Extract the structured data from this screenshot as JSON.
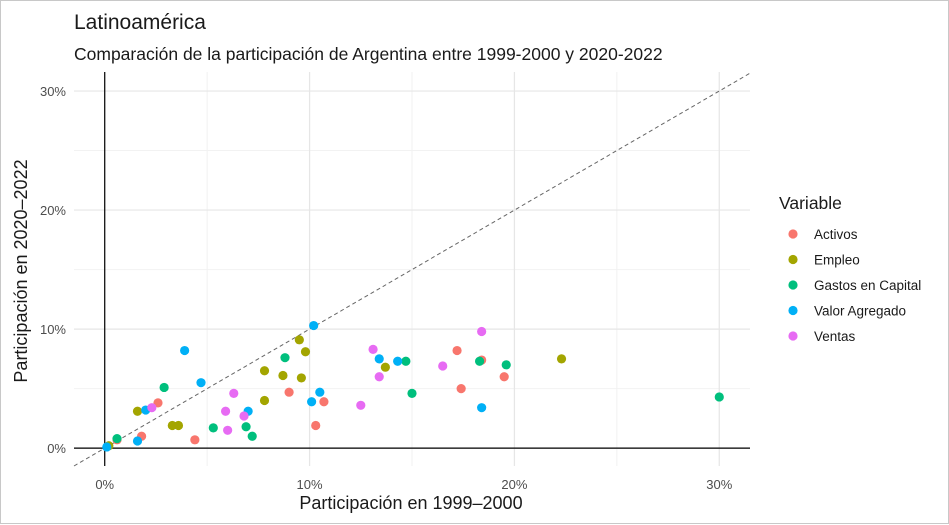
{
  "chart_data": {
    "type": "scatter",
    "title": "Latinoamérica",
    "subtitle": "Comparación de la participación de Argentina entre 1999-2000 y 2020-2022",
    "xlabel": "Participación en 1999–2000",
    "ylabel": "Participación en 2020–2022",
    "xlim": [
      -0.015,
      0.315
    ],
    "ylim": [
      -0.015,
      0.316
    ],
    "x_ticks": [
      0,
      0.1,
      0.2,
      0.3
    ],
    "x_tick_labels": [
      "0%",
      "10%",
      "20%",
      "30%"
    ],
    "y_ticks": [
      0,
      0.1,
      0.2,
      0.3
    ],
    "y_tick_labels": [
      "0%",
      "10%",
      "20%",
      "30%"
    ],
    "grid": true,
    "reference_line": "y = x (dashed)",
    "legend_position": "right",
    "legend_title": "Variable",
    "series": [
      {
        "name": "Activos",
        "color": "#F8766D",
        "points": [
          [
            0.006,
            0.007
          ],
          [
            0.018,
            0.01
          ],
          [
            0.026,
            0.038
          ],
          [
            0.044,
            0.007
          ],
          [
            0.09,
            0.047
          ],
          [
            0.103,
            0.019
          ],
          [
            0.107,
            0.039
          ],
          [
            0.172,
            0.082
          ],
          [
            0.174,
            0.05
          ],
          [
            0.184,
            0.074
          ],
          [
            0.195,
            0.06
          ]
        ]
      },
      {
        "name": "Empleo",
        "color": "#A3A500",
        "points": [
          [
            0.002,
            0.002
          ],
          [
            0.016,
            0.031
          ],
          [
            0.033,
            0.019
          ],
          [
            0.036,
            0.019
          ],
          [
            0.078,
            0.065
          ],
          [
            0.078,
            0.04
          ],
          [
            0.087,
            0.061
          ],
          [
            0.095,
            0.091
          ],
          [
            0.098,
            0.081
          ],
          [
            0.096,
            0.059
          ],
          [
            0.137,
            0.068
          ],
          [
            0.223,
            0.075
          ]
        ]
      },
      {
        "name": "Gastos en Capital",
        "color": "#00BF7D",
        "points": [
          [
            0.006,
            0.008
          ],
          [
            0.029,
            0.051
          ],
          [
            0.053,
            0.017
          ],
          [
            0.069,
            0.018
          ],
          [
            0.072,
            0.01
          ],
          [
            0.088,
            0.076
          ],
          [
            0.147,
            0.073
          ],
          [
            0.15,
            0.046
          ],
          [
            0.183,
            0.073
          ],
          [
            0.196,
            0.07
          ],
          [
            0.3,
            0.043
          ]
        ]
      },
      {
        "name": "Valor Agregado",
        "color": "#00B0F6",
        "points": [
          [
            0.001,
            0.001
          ],
          [
            0.016,
            0.006
          ],
          [
            0.02,
            0.032
          ],
          [
            0.039,
            0.082
          ],
          [
            0.047,
            0.055
          ],
          [
            0.07,
            0.031
          ],
          [
            0.101,
            0.039
          ],
          [
            0.102,
            0.103
          ],
          [
            0.105,
            0.047
          ],
          [
            0.134,
            0.075
          ],
          [
            0.143,
            0.073
          ],
          [
            0.184,
            0.034
          ]
        ]
      },
      {
        "name": "Ventas",
        "color": "#E76BF3",
        "points": [
          [
            0.023,
            0.034
          ],
          [
            0.059,
            0.031
          ],
          [
            0.06,
            0.015
          ],
          [
            0.063,
            0.046
          ],
          [
            0.068,
            0.027
          ],
          [
            0.125,
            0.036
          ],
          [
            0.131,
            0.083
          ],
          [
            0.134,
            0.06
          ],
          [
            0.165,
            0.069
          ],
          [
            0.184,
            0.098
          ]
        ]
      }
    ]
  }
}
